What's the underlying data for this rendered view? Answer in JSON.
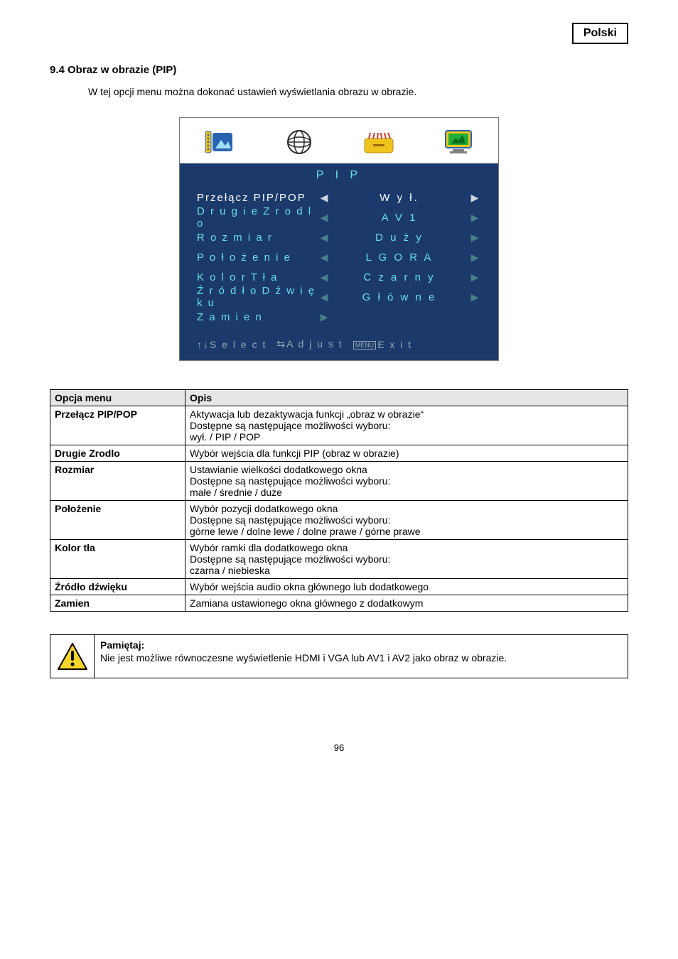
{
  "page": {
    "language_badge": "Polski",
    "section_heading": "9.4 Obraz w obrazie (PIP)",
    "intro_text": "W tej opcji menu można dokonać ustawień wyświetlania obrazu w obrazie.",
    "page_number": "96"
  },
  "osd": {
    "title": "P I P",
    "rows": [
      {
        "label": "Przełącz PIP/POP",
        "value": "W y ł.",
        "selected": true,
        "left": true,
        "right": true
      },
      {
        "label": "D r u g i e  Z r o d l o",
        "value": "A V 1",
        "selected": false,
        "left": true,
        "right": true
      },
      {
        "label": "R o z m i a r",
        "value": "D u ż y",
        "selected": false,
        "left": true,
        "right": true
      },
      {
        "label": "P o ł o ż e n i e",
        "value": "L  G O R A",
        "selected": false,
        "left": true,
        "right": true
      },
      {
        "label": "K o l o r  T ł a",
        "value": "C z a r n y",
        "selected": false,
        "left": true,
        "right": true
      },
      {
        "label": "Ź r ó d ł o  D ź w i ę k u",
        "value": "G ł ó w n e",
        "selected": false,
        "left": true,
        "right": true
      },
      {
        "label": "Z a m i e n",
        "value": "",
        "selected": false,
        "left": false,
        "right": true,
        "right_only_left_pos": true
      }
    ],
    "footer": {
      "select": "↑↓S e l e c t",
      "adjust": "⇆A d j u s t",
      "menu_label": "MENU",
      "exit": "E x i t"
    },
    "tab_icons": {
      "border_color": "#2a63b0",
      "active_bg": "#efc41e",
      "inactive_bg": "#ffffff"
    }
  },
  "table": {
    "headers": {
      "col1": "Opcja menu",
      "col2": "Opis"
    },
    "rows": [
      {
        "name": "Przełącz PIP/POP",
        "desc": "Aktywacja lub dezaktywacja funkcji „obraz w obrazie“\nDostępne są następujące możliwości wyboru:\nwył. / PIP / POP"
      },
      {
        "name": "Drugie Zrodlo",
        "desc": "Wybór wejścia dla funkcji PIP (obraz w obrazie)"
      },
      {
        "name": "Rozmiar",
        "desc": "Ustawianie wielkości dodatkowego okna\nDostępne są następujące możliwości wyboru:\nmałe / średnie / duże"
      },
      {
        "name": "Położenie",
        "desc": "Wybór pozycji dodatkowego okna\nDostępne są następujące możliwości wyboru:\ngórne lewe / dolne lewe / dolne prawe / górne prawe"
      },
      {
        "name": "Kolor tła",
        "desc": "Wybór ramki dla dodatkowego okna\nDostępne są następujące możliwości wyboru:\nczarna / niebieska"
      },
      {
        "name": "Źródło dźwięku",
        "desc": "Wybór wejścia audio okna głównego lub dodatkowego"
      },
      {
        "name": "Zamien",
        "desc": "Zamiana ustawionego okna głównego z dodatkowym"
      }
    ]
  },
  "note": {
    "title": "Pamiętaj:",
    "body": "Nie jest możliwe równoczesne wyświetlenie HDMI i VGA lub AV1 i AV2 jako obraz w obrazie."
  },
  "colors": {
    "osd_bg": "#1b3a6b",
    "osd_text": "#6adfe8",
    "osd_sel_text": "#ffffff",
    "osd_arrow": "#488089",
    "osd_footer": "#9aa7b4",
    "table_header_bg": "#e6e6e6"
  }
}
